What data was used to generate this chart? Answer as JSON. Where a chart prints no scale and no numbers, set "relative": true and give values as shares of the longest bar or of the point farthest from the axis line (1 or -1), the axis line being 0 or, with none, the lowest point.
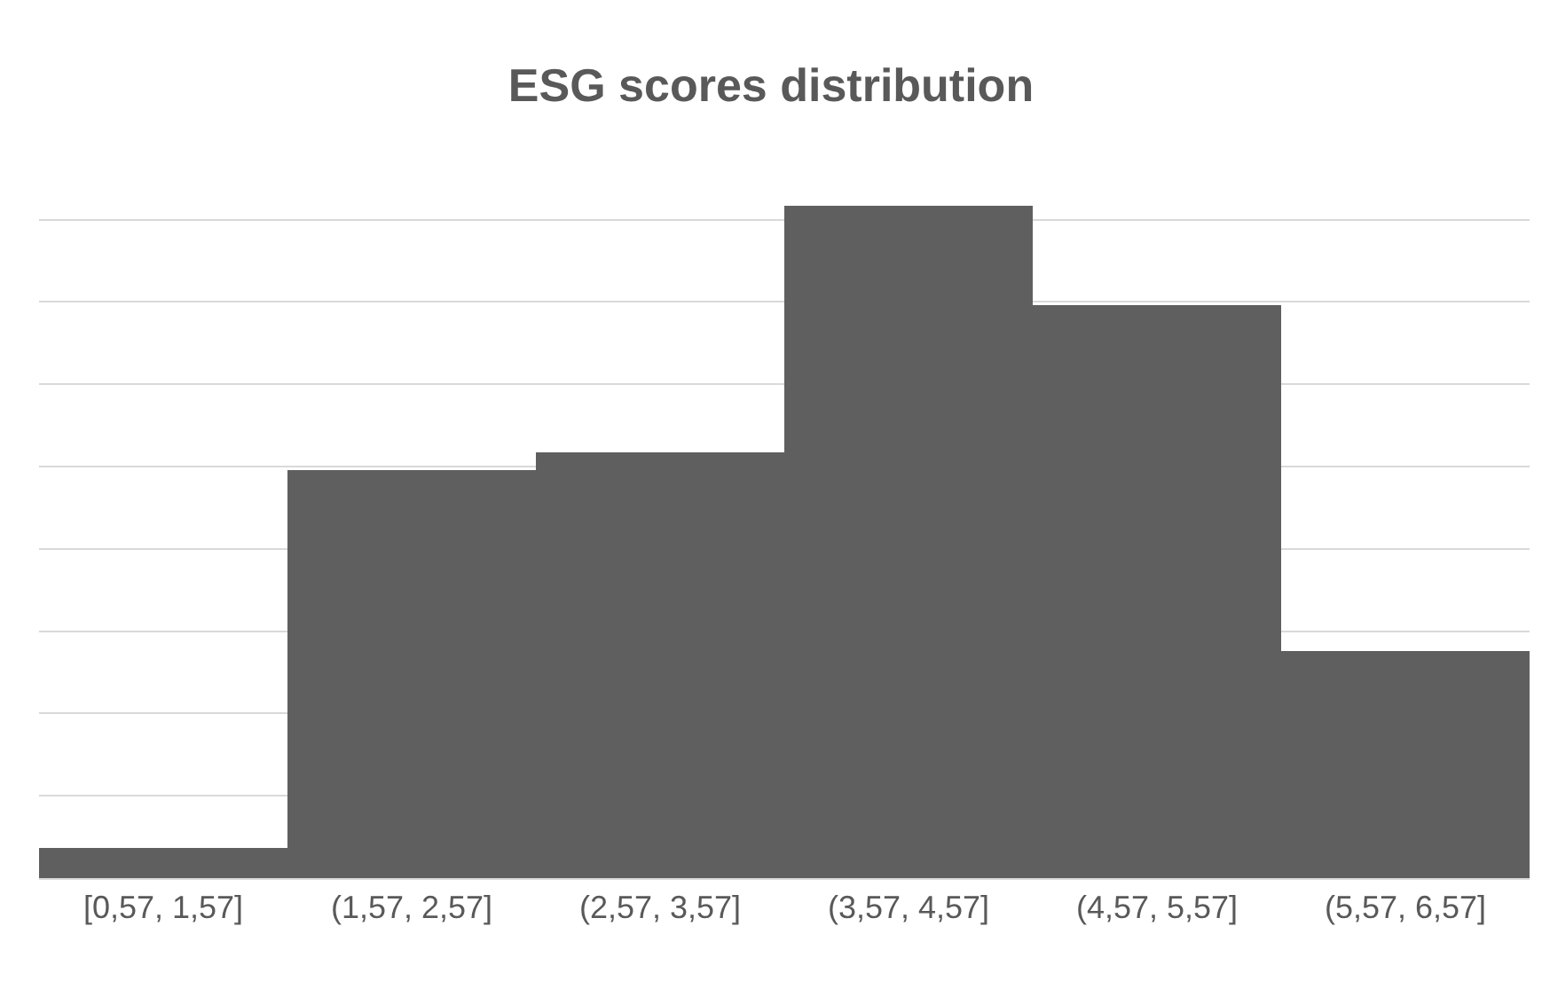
{
  "chart_data": {
    "type": "bar",
    "title": "ESG scores distribution",
    "categories": [
      "[0,57, 1,57]",
      "(1,57, 2,57]",
      "(2,57, 3,57]",
      "(3,57, 4,57]",
      "(4,57, 5,57]",
      "(5,57, 6,57]"
    ],
    "values": [
      0.045,
      0.607,
      0.633,
      1,
      0.852,
      0.338
    ],
    "color": "#5f5f5f",
    "relative": true,
    "grid": "y"
  }
}
